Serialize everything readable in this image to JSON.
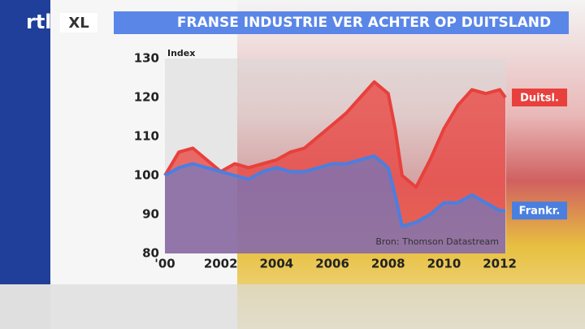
{
  "logo": {
    "left": "rtl",
    "right": "XL"
  },
  "chart_data": {
    "type": "area-line",
    "title": "FRANSE INDUSTRIE VER ACHTER OP DUITSLAND",
    "y_label": "Index",
    "source": "Bron: Thomson Datastream",
    "x": [
      2000,
      2000.5,
      2001,
      2001.5,
      2002,
      2002.5,
      2003,
      2003.5,
      2004,
      2004.5,
      2005,
      2005.5,
      2006,
      2006.5,
      2007,
      2007.5,
      2008,
      2008.25,
      2008.5,
      2009,
      2009.5,
      2010,
      2010.5,
      2011,
      2011.5,
      2012,
      2012.2
    ],
    "series": [
      {
        "name": "Duitsl.",
        "color": "#e8403c",
        "values": [
          100,
          106,
          107,
          104,
          101,
          103,
          102,
          103,
          104,
          106,
          107,
          110,
          113,
          116,
          120,
          124,
          121,
          112,
          100,
          97,
          104,
          112,
          118,
          122,
          121,
          122,
          120
        ]
      },
      {
        "name": "Frankr.",
        "color": "#4a7fe0",
        "values": [
          100,
          102,
          103,
          102,
          101,
          100,
          99,
          101,
          102,
          101,
          101,
          102,
          103,
          103,
          104,
          105,
          102,
          95,
          87,
          88,
          90,
          93,
          93,
          95,
          93,
          91,
          91
        ]
      }
    ],
    "xlim": [
      2000,
      2012.2
    ],
    "xticks": [
      {
        "value": 2000,
        "label": "'00"
      },
      2002,
      2004,
      2006,
      2008,
      2010,
      2012
    ],
    "ylim": [
      80,
      130
    ],
    "yticks": [
      80,
      90,
      100,
      110,
      120,
      130
    ],
    "grid": false
  }
}
